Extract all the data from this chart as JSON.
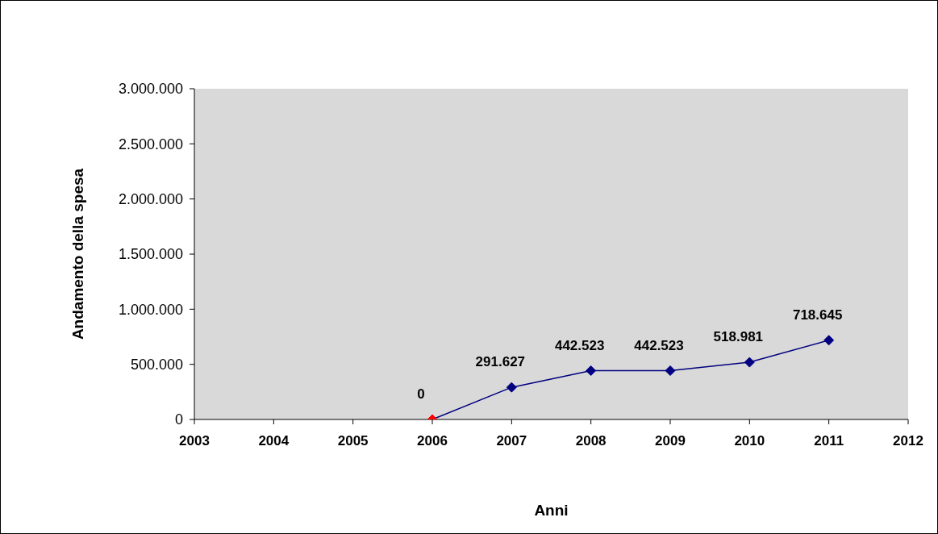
{
  "chart_data": {
    "type": "line",
    "xlabel": "Anni",
    "ylabel": "Andamento della spesa",
    "x": [
      2006,
      2007,
      2008,
      2009,
      2010,
      2011
    ],
    "series": [
      {
        "color": "#000080",
        "colors": [
          "#ff0000",
          "#000080",
          "#000080",
          "#000080",
          "#000080",
          "#000080"
        ],
        "values": [
          0,
          291627,
          442523,
          442523,
          518981,
          718645
        ],
        "value_labels": [
          "0",
          "291.627",
          "442.523",
          "442.523",
          "518.981",
          "718.645"
        ]
      }
    ],
    "xlim": [
      2003,
      2012
    ],
    "xticks": [
      2003,
      2004,
      2005,
      2006,
      2007,
      2008,
      2009,
      2010,
      2011,
      2012
    ],
    "ylim": [
      0,
      3000000
    ],
    "yticks": [
      {
        "value": 0,
        "label": "0"
      },
      {
        "value": 500000,
        "label": "500.000"
      },
      {
        "value": 1000000,
        "label": "1.000.000"
      },
      {
        "value": 1500000,
        "label": "1.500.000"
      },
      {
        "value": 2000000,
        "label": "2.000.000"
      },
      {
        "value": 2500000,
        "label": "2.500.000"
      },
      {
        "value": 3000000,
        "label": "3.000.000"
      }
    ],
    "marker": "diamond",
    "line_style": "solid",
    "legend": false
  }
}
